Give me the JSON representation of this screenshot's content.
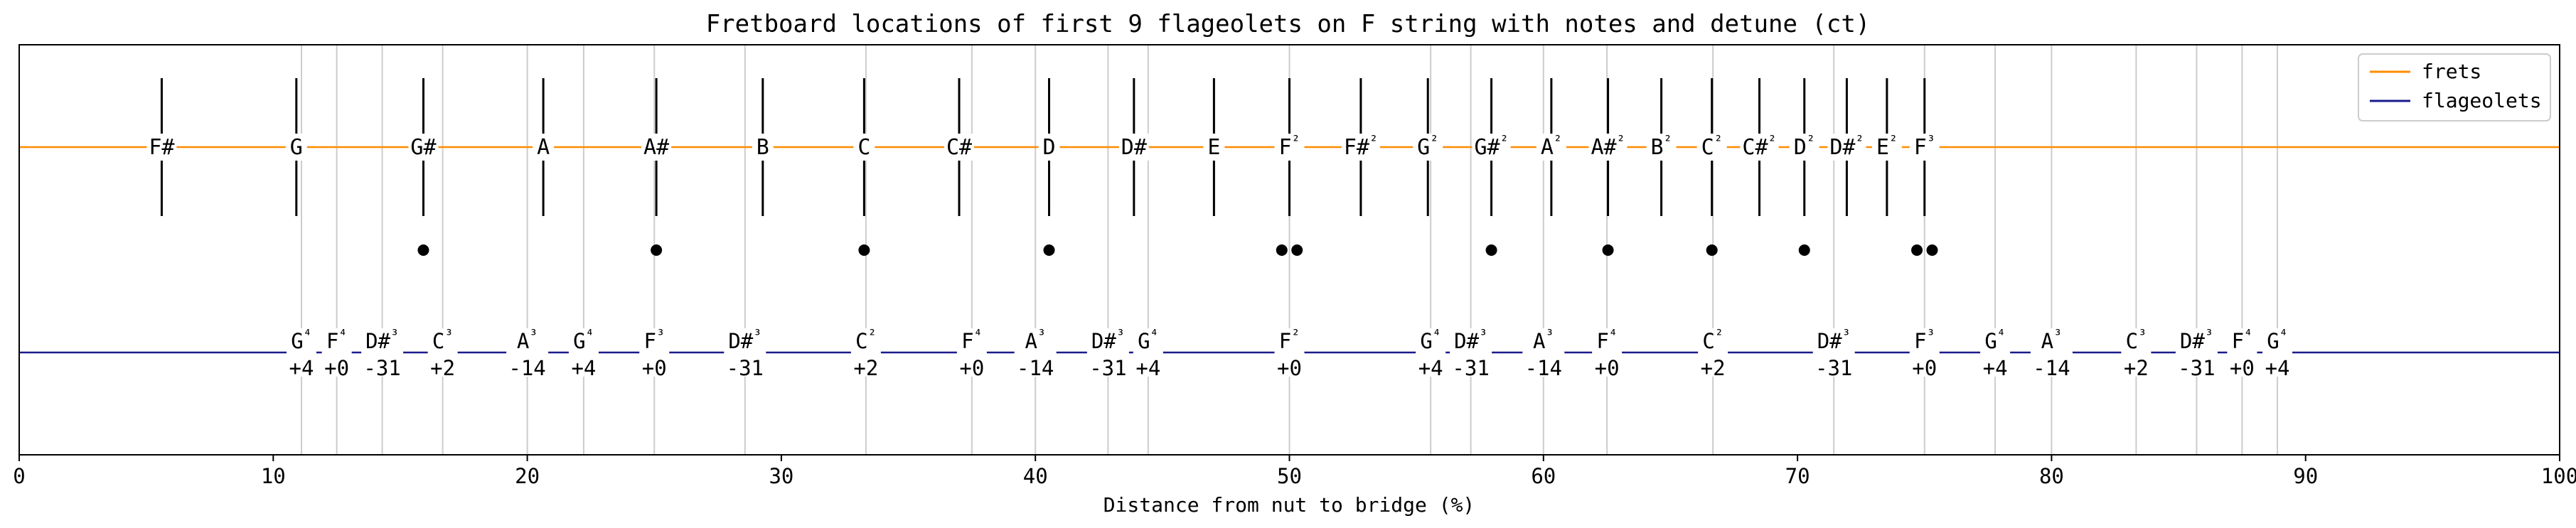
{
  "chart_data": {
    "type": "line",
    "title": "Fretboard locations of first 9 flageolets on F string with notes and detune (ct)",
    "xlabel": "Distance from nut to bridge (%)",
    "ylabel": "",
    "xlim": [
      0,
      100
    ],
    "xticks": [
      "0",
      "10",
      "20",
      "30",
      "40",
      "50",
      "60",
      "70",
      "80",
      "90",
      "100"
    ],
    "grid": "vertical lines at flageolet positions",
    "legend": {
      "location": "top-right",
      "entries": [
        "frets",
        "flageolets"
      ]
    },
    "colors": {
      "frets": "#ff8c00",
      "flageolets": "#1a1a8c",
      "grid": "#cccccc",
      "dots": "#000000"
    },
    "frets": [
      {
        "x": 5.61,
        "note": "F#"
      },
      {
        "x": 10.91,
        "note": "G"
      },
      {
        "x": 15.91,
        "note": "G#"
      },
      {
        "x": 20.63,
        "note": "A"
      },
      {
        "x": 25.08,
        "note": "A#"
      },
      {
        "x": 29.27,
        "note": "B"
      },
      {
        "x": 33.26,
        "note": "C"
      },
      {
        "x": 37.0,
        "note": "C#"
      },
      {
        "x": 40.54,
        "note": "D"
      },
      {
        "x": 43.88,
        "note": "D#"
      },
      {
        "x": 47.03,
        "note": "E"
      },
      {
        "x": 50.0,
        "note": "F²"
      },
      {
        "x": 52.81,
        "note": "F#²"
      },
      {
        "x": 55.45,
        "note": "G²"
      },
      {
        "x": 57.95,
        "note": "G#²"
      },
      {
        "x": 60.31,
        "note": "A²"
      },
      {
        "x": 62.54,
        "note": "A#²"
      },
      {
        "x": 64.64,
        "note": "B²"
      },
      {
        "x": 66.63,
        "note": "C²"
      },
      {
        "x": 68.5,
        "note": "C#²"
      },
      {
        "x": 70.27,
        "note": "D²"
      },
      {
        "x": 71.94,
        "note": "D#²"
      },
      {
        "x": 73.52,
        "note": "E²"
      },
      {
        "x": 75.0,
        "note": "F³"
      }
    ],
    "dots": [
      15.91,
      25.08,
      33.26,
      40.54,
      49.7,
      50.3,
      57.95,
      62.54,
      66.63,
      70.27,
      74.7,
      75.3
    ],
    "flageolets": [
      {
        "x": 11.11,
        "note": "G⁴",
        "detune": "+4"
      },
      {
        "x": 12.5,
        "note": "F⁴",
        "detune": "+0"
      },
      {
        "x": 14.29,
        "note": "D#³",
        "detune": "-31"
      },
      {
        "x": 16.67,
        "note": "C³",
        "detune": "+2"
      },
      {
        "x": 20.0,
        "note": "A³",
        "detune": "-14"
      },
      {
        "x": 22.22,
        "note": "G⁴",
        "detune": "+4"
      },
      {
        "x": 25.0,
        "note": "F³",
        "detune": "+0"
      },
      {
        "x": 28.57,
        "note": "D#³",
        "detune": "-31"
      },
      {
        "x": 33.33,
        "note": "C²",
        "detune": "+2"
      },
      {
        "x": 37.5,
        "note": "F⁴",
        "detune": "+0"
      },
      {
        "x": 40.0,
        "note": "A³",
        "detune": "-14"
      },
      {
        "x": 42.86,
        "note": "D#³",
        "detune": "-31"
      },
      {
        "x": 44.44,
        "note": "G⁴",
        "detune": "+4"
      },
      {
        "x": 50.0,
        "note": "F²",
        "detune": "+0"
      },
      {
        "x": 55.56,
        "note": "G⁴",
        "detune": "+4"
      },
      {
        "x": 57.14,
        "note": "D#³",
        "detune": "-31"
      },
      {
        "x": 60.0,
        "note": "A³",
        "detune": "-14"
      },
      {
        "x": 62.5,
        "note": "F⁴",
        "detune": "+0"
      },
      {
        "x": 66.67,
        "note": "C²",
        "detune": "+2"
      },
      {
        "x": 71.43,
        "note": "D#³",
        "detune": "-31"
      },
      {
        "x": 75.0,
        "note": "F³",
        "detune": "+0"
      },
      {
        "x": 77.78,
        "note": "G⁴",
        "detune": "+4"
      },
      {
        "x": 80.0,
        "note": "A³",
        "detune": "-14"
      },
      {
        "x": 83.33,
        "note": "C³",
        "detune": "+2"
      },
      {
        "x": 85.71,
        "note": "D#³",
        "detune": "-31"
      },
      {
        "x": 87.5,
        "note": "F⁴",
        "detune": "+0"
      },
      {
        "x": 88.89,
        "note": "G⁴",
        "detune": "+4"
      }
    ]
  }
}
